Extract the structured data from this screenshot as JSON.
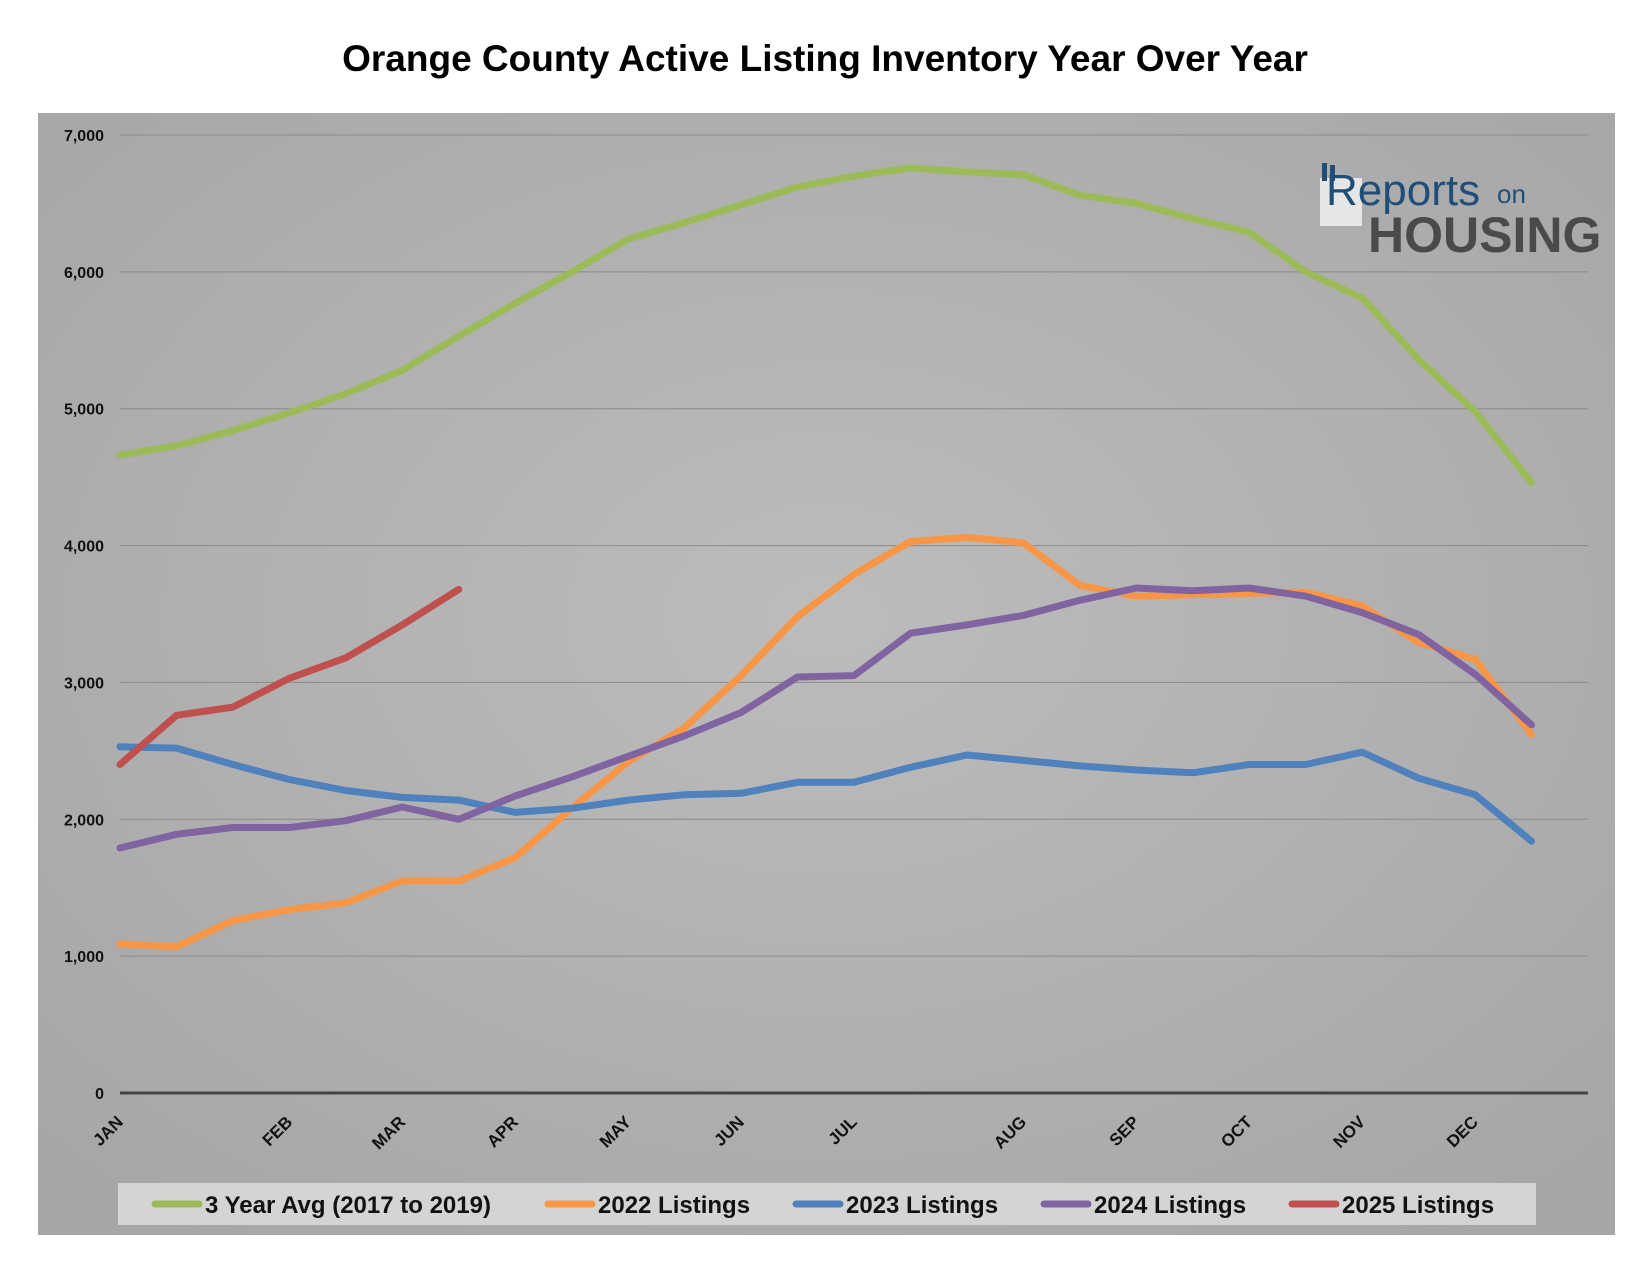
{
  "chart_data": {
    "type": "line",
    "title": "Orange County Active Listing Inventory Year Over Year",
    "ylim": [
      0,
      7000
    ],
    "yticks": [
      0,
      1000,
      2000,
      3000,
      4000,
      5000,
      6000,
      7000
    ],
    "ytick_labels": [
      "0",
      "1,000",
      "2,000",
      "3,000",
      "4,000",
      "5,000",
      "6,000",
      "7,000"
    ],
    "xlim": [
      0,
      52
    ],
    "xticks": [
      {
        "label": "JAN",
        "week": 0
      },
      {
        "label": "FEB",
        "week": 6
      },
      {
        "label": "MAR",
        "week": 10
      },
      {
        "label": "APR",
        "week": 14
      },
      {
        "label": "MAY",
        "week": 18
      },
      {
        "label": "JUN",
        "week": 22
      },
      {
        "label": "JUL",
        "week": 26
      },
      {
        "label": "AUG",
        "week": 32
      },
      {
        "label": "SEP",
        "week": 36
      },
      {
        "label": "OCT",
        "week": 40
      },
      {
        "label": "NOV",
        "week": 44
      },
      {
        "label": "DEC",
        "week": 48
      }
    ],
    "grid": true,
    "legend_position": "bottom",
    "series": [
      {
        "name": "3 Year Avg (2017 to 2019)",
        "color": "#9bbb59",
        "points": [
          [
            0,
            4660
          ],
          [
            2,
            4730
          ],
          [
            4,
            4840
          ],
          [
            6,
            4970
          ],
          [
            8,
            5110
          ],
          [
            10,
            5280
          ],
          [
            12,
            5530
          ],
          [
            14,
            5770
          ],
          [
            16,
            6000
          ],
          [
            18,
            6240
          ],
          [
            20,
            6360
          ],
          [
            22,
            6490
          ],
          [
            24,
            6620
          ],
          [
            26,
            6700
          ],
          [
            28,
            6760
          ],
          [
            30,
            6730
          ],
          [
            32,
            6710
          ],
          [
            34,
            6560
          ],
          [
            36,
            6500
          ],
          [
            38,
            6390
          ],
          [
            40,
            6290
          ],
          [
            42,
            6000
          ],
          [
            44,
            5810
          ],
          [
            46,
            5360
          ],
          [
            48,
            4980
          ],
          [
            50,
            4460
          ]
        ]
      },
      {
        "name": "2022 Listings",
        "color": "#f79646",
        "points": [
          [
            0,
            1090
          ],
          [
            2,
            1070
          ],
          [
            4,
            1260
          ],
          [
            6,
            1340
          ],
          [
            8,
            1390
          ],
          [
            10,
            1550
          ],
          [
            12,
            1550
          ],
          [
            14,
            1720
          ],
          [
            16,
            2080
          ],
          [
            18,
            2420
          ],
          [
            20,
            2670
          ],
          [
            22,
            3050
          ],
          [
            24,
            3480
          ],
          [
            26,
            3790
          ],
          [
            28,
            4030
          ],
          [
            30,
            4060
          ],
          [
            32,
            4020
          ],
          [
            34,
            3710
          ],
          [
            36,
            3630
          ],
          [
            38,
            3640
          ],
          [
            40,
            3650
          ],
          [
            42,
            3660
          ],
          [
            44,
            3560
          ],
          [
            46,
            3290
          ],
          [
            48,
            3170
          ],
          [
            50,
            2620
          ]
        ]
      },
      {
        "name": "2023 Listings",
        "color": "#4f81bd",
        "points": [
          [
            0,
            2530
          ],
          [
            2,
            2520
          ],
          [
            4,
            2400
          ],
          [
            6,
            2290
          ],
          [
            8,
            2210
          ],
          [
            10,
            2160
          ],
          [
            12,
            2140
          ],
          [
            14,
            2050
          ],
          [
            16,
            2080
          ],
          [
            18,
            2140
          ],
          [
            20,
            2180
          ],
          [
            22,
            2190
          ],
          [
            24,
            2270
          ],
          [
            26,
            2270
          ],
          [
            28,
            2380
          ],
          [
            30,
            2470
          ],
          [
            32,
            2430
          ],
          [
            34,
            2390
          ],
          [
            36,
            2360
          ],
          [
            38,
            2340
          ],
          [
            40,
            2400
          ],
          [
            42,
            2400
          ],
          [
            44,
            2490
          ],
          [
            46,
            2300
          ],
          [
            48,
            2180
          ],
          [
            50,
            1840
          ]
        ]
      },
      {
        "name": "2024 Listings",
        "color": "#8064a2",
        "points": [
          [
            0,
            1790
          ],
          [
            2,
            1890
          ],
          [
            4,
            1940
          ],
          [
            6,
            1940
          ],
          [
            8,
            1990
          ],
          [
            10,
            2090
          ],
          [
            12,
            2000
          ],
          [
            14,
            2170
          ],
          [
            16,
            2310
          ],
          [
            18,
            2460
          ],
          [
            20,
            2610
          ],
          [
            22,
            2780
          ],
          [
            24,
            3040
          ],
          [
            26,
            3050
          ],
          [
            28,
            3360
          ],
          [
            30,
            3420
          ],
          [
            32,
            3490
          ],
          [
            34,
            3600
          ],
          [
            36,
            3690
          ],
          [
            38,
            3670
          ],
          [
            40,
            3690
          ],
          [
            42,
            3630
          ],
          [
            44,
            3510
          ],
          [
            46,
            3350
          ],
          [
            48,
            3060
          ],
          [
            50,
            2690
          ]
        ]
      },
      {
        "name": "2025 Listings",
        "color": "#c0504d",
        "points": [
          [
            0,
            2400
          ],
          [
            2,
            2760
          ],
          [
            4,
            2820
          ],
          [
            6,
            3030
          ],
          [
            8,
            3180
          ],
          [
            10,
            3420
          ],
          [
            12,
            3680
          ]
        ]
      }
    ]
  },
  "logo": {
    "reports": "Reports",
    "on": "on",
    "housing": "HOUSING"
  },
  "colors": {
    "plot_bg": "#b0b0b0",
    "grid": "#8a8a8a",
    "legend_bg": "#d4d4d4"
  }
}
